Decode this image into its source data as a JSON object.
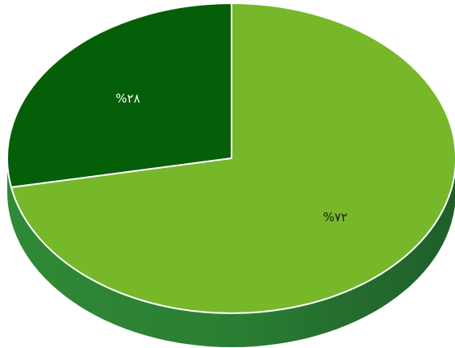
{
  "chart_data": {
    "type": "pie",
    "values": [
      28,
      72
    ],
    "value_labels": [
      "%۲۸",
      "%۷۲"
    ],
    "colors": [
      "#055e08",
      "#76b82a"
    ]
  }
}
